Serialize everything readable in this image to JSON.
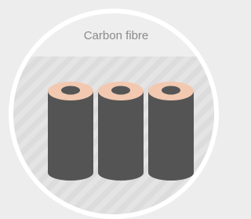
{
  "label": "Carbon fibre"
}
